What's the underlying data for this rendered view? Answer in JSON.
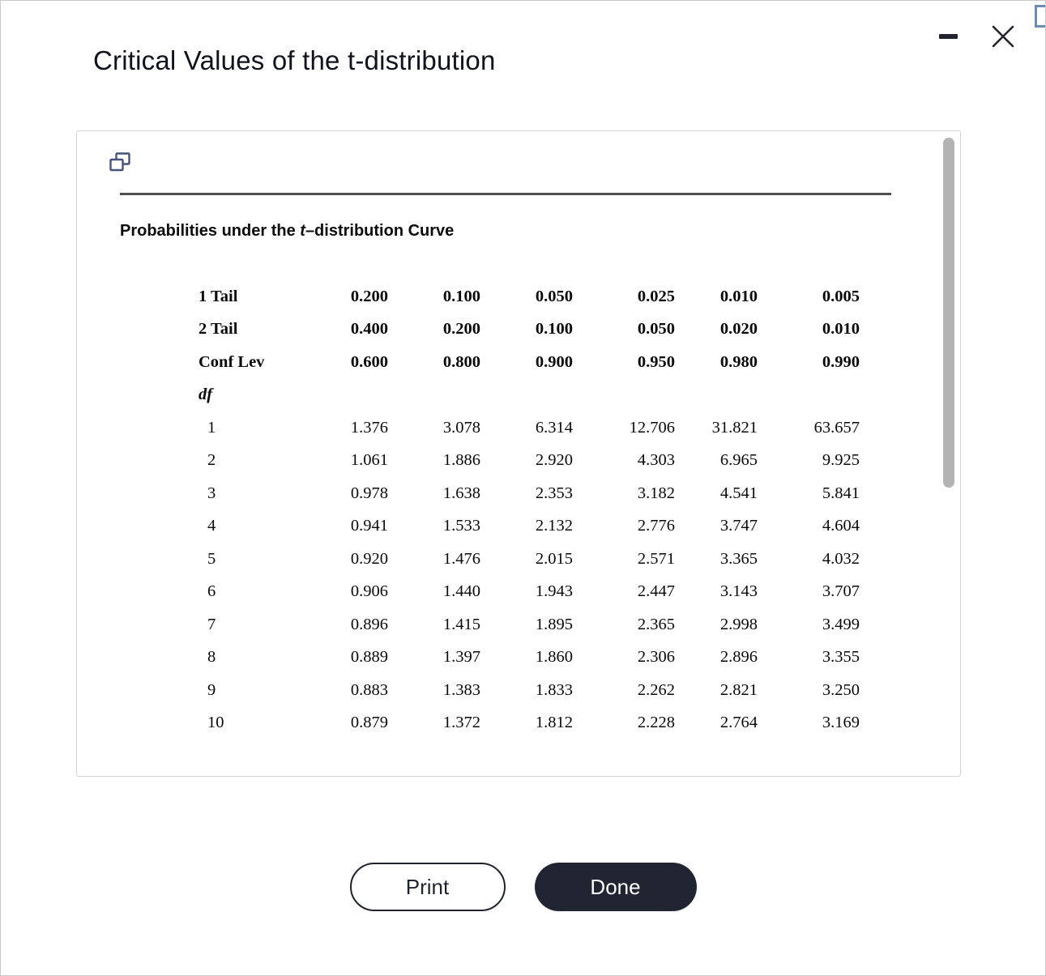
{
  "window": {
    "title": "Critical Values of the t-distribution"
  },
  "icons": {
    "minimize": "minus",
    "close": "x",
    "popout": "pop-out-window"
  },
  "panel": {
    "heading": {
      "prefix": "Probabilities under the ",
      "italic": "t",
      "suffix": "–distribution Curve"
    }
  },
  "table": {
    "header_rows": [
      {
        "label": "1 Tail",
        "values": [
          "0.200",
          "0.100",
          "0.050",
          "0.025",
          "0.010",
          "0.005"
        ]
      },
      {
        "label": "2 Tail",
        "values": [
          "0.400",
          "0.200",
          "0.100",
          "0.050",
          "0.020",
          "0.010"
        ]
      },
      {
        "label": "Conf Lev",
        "values": [
          "0.600",
          "0.800",
          "0.900",
          "0.950",
          "0.980",
          "0.990"
        ]
      }
    ],
    "df_label": "df",
    "df_rows": [
      {
        "df": "1",
        "values": [
          "1.376",
          "3.078",
          "6.314",
          "12.706",
          "31.821",
          "63.657"
        ]
      },
      {
        "df": "2",
        "values": [
          "1.061",
          "1.886",
          "2.920",
          "4.303",
          "6.965",
          "9.925"
        ]
      },
      {
        "df": "3",
        "values": [
          "0.978",
          "1.638",
          "2.353",
          "3.182",
          "4.541",
          "5.841"
        ]
      },
      {
        "df": "4",
        "values": [
          "0.941",
          "1.533",
          "2.132",
          "2.776",
          "3.747",
          "4.604"
        ]
      },
      {
        "df": "5",
        "values": [
          "0.920",
          "1.476",
          "2.015",
          "2.571",
          "3.365",
          "4.032"
        ]
      },
      {
        "df": "6",
        "values": [
          "0.906",
          "1.440",
          "1.943",
          "2.447",
          "3.143",
          "3.707"
        ]
      },
      {
        "df": "7",
        "values": [
          "0.896",
          "1.415",
          "1.895",
          "2.365",
          "2.998",
          "3.499"
        ]
      },
      {
        "df": "8",
        "values": [
          "0.889",
          "1.397",
          "1.860",
          "2.306",
          "2.896",
          "3.355"
        ]
      },
      {
        "df": "9",
        "values": [
          "0.883",
          "1.383",
          "1.833",
          "2.262",
          "2.821",
          "3.250"
        ]
      },
      {
        "df": "10",
        "values": [
          "0.879",
          "1.372",
          "1.812",
          "2.228",
          "2.764",
          "3.169"
        ]
      }
    ]
  },
  "buttons": {
    "print": "Print",
    "done": "Done"
  },
  "colors": {
    "accent_dark": "#212532",
    "divider": "#4f4f4f",
    "popout_icon": "#46527a"
  }
}
